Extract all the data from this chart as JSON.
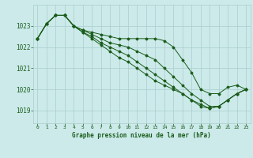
{
  "title": "Graphe pression niveau de la mer (hPa)",
  "background_color": "#cceaea",
  "grid_color": "#aacccc",
  "line_color": "#1a5c1a",
  "xlim": [
    -0.5,
    23.5
  ],
  "ylim": [
    1018.4,
    1024.0
  ],
  "yticks": [
    1019,
    1020,
    1021,
    1022,
    1023
  ],
  "xticks": [
    0,
    1,
    2,
    3,
    4,
    5,
    6,
    7,
    8,
    9,
    10,
    11,
    12,
    13,
    14,
    15,
    16,
    17,
    18,
    19,
    20,
    21,
    22,
    23
  ],
  "lines": [
    [
      1022.4,
      1023.1,
      1023.5,
      1023.5,
      1023.0,
      1022.8,
      1022.7,
      1022.6,
      1022.5,
      1022.4,
      1022.4,
      1022.4,
      1022.4,
      1022.4,
      1022.3,
      1022.0,
      1021.4,
      1020.8,
      1020.0,
      1019.8,
      1019.8,
      1020.1,
      1020.2,
      1020.0
    ],
    [
      1022.4,
      1023.1,
      1023.5,
      1023.5,
      1023.0,
      1022.8,
      1022.6,
      1022.4,
      1022.2,
      1022.1,
      1022.0,
      1021.8,
      1021.6,
      1021.4,
      1021.0,
      1020.6,
      1020.2,
      1019.8,
      1019.5,
      1019.2,
      1019.2,
      1019.5,
      1019.8,
      1020.0
    ],
    [
      1022.4,
      1023.1,
      1023.5,
      1023.5,
      1023.0,
      1022.7,
      1022.5,
      1022.2,
      1022.0,
      1021.8,
      1021.6,
      1021.3,
      1021.0,
      1020.7,
      1020.4,
      1020.1,
      1019.8,
      1019.5,
      1019.2,
      1019.1,
      1019.2,
      1019.5,
      1019.8,
      1020.0
    ],
    [
      1022.4,
      1023.1,
      1023.5,
      1023.5,
      1023.0,
      1022.7,
      1022.4,
      1022.1,
      1021.8,
      1021.5,
      1021.3,
      1021.0,
      1020.7,
      1020.4,
      1020.2,
      1020.0,
      1019.8,
      1019.5,
      1019.3,
      1019.1,
      1019.2,
      1019.5,
      1019.8,
      1020.0
    ]
  ]
}
